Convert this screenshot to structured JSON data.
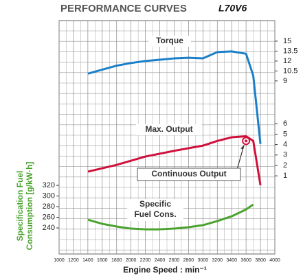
{
  "chart_data": {
    "type": "line",
    "title": "PERFORMANCE CURVES",
    "model": "L70V6",
    "x_label": "Engine Speed : min⁻¹",
    "y_label": [
      "Specification Fuel",
      "Consumption [g/kW·h]"
    ],
    "xlim": [
      1000,
      4000
    ],
    "xticks": [
      1000,
      1200,
      1400,
      1600,
      1800,
      2000,
      2200,
      2400,
      2600,
      2800,
      3000,
      3200,
      3400,
      3600,
      3800,
      4000
    ],
    "ylim": [
      191,
      630
    ],
    "yticks": [
      240,
      260,
      280,
      300,
      320
    ],
    "y2lim": [
      -6.5,
      15.9
    ],
    "y2ticks": [
      1,
      2,
      3,
      4,
      5,
      6
    ],
    "y3lim": [
      -17.1,
      18.1
    ],
    "y3ticks": [
      9,
      10.5,
      12,
      13.5,
      15
    ],
    "grid": true,
    "series": [
      {
        "name": "Torque",
        "color": "#1a7fc8",
        "axis": "y3",
        "x": [
          1400,
          1600,
          1800,
          2000,
          2200,
          2400,
          2600,
          2800,
          3000,
          3200,
          3400,
          3600,
          3700,
          3800
        ],
        "values": [
          10.1,
          10.7,
          11.3,
          11.7,
          12.0,
          12.2,
          12.4,
          12.5,
          12.4,
          13.35,
          13.45,
          13.1,
          9.8,
          -0.5
        ]
      },
      {
        "name": "Max. Output",
        "color": "#d0103a",
        "axis": "y2",
        "x": [
          1400,
          1800,
          2200,
          2600,
          3000,
          3200,
          3400,
          3600,
          3700,
          3800
        ],
        "values": [
          1.4,
          2.05,
          2.85,
          3.4,
          3.9,
          4.35,
          4.7,
          4.8,
          4.35,
          0.1
        ]
      },
      {
        "name": "Specific Fuel Cons.",
        "color": "#4aa32e",
        "axis": "y",
        "x": [
          1400,
          1600,
          1800,
          2000,
          2200,
          2400,
          2600,
          2800,
          3000,
          3200,
          3400,
          3600,
          3700
        ],
        "values": [
          255.5,
          247.7,
          242.6,
          238.7,
          237.4,
          237.4,
          238.7,
          241.3,
          245.2,
          252.9,
          261.9,
          274.8,
          283.9
        ]
      }
    ],
    "continuous_output": {
      "name": "Continuous Output",
      "x": 3600,
      "value": 4.35
    }
  }
}
